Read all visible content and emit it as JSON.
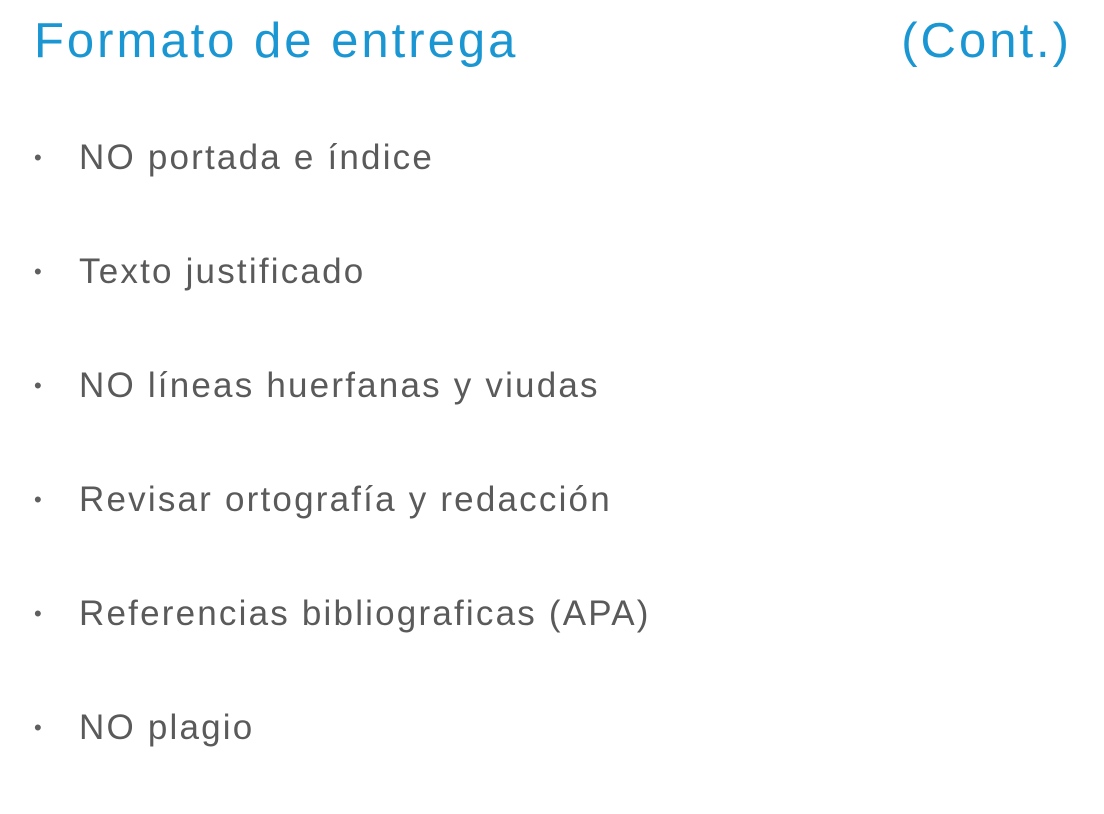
{
  "slide": {
    "title": "Formato de entrega",
    "title_suffix": "(Cont.)",
    "bullet_glyph": "•",
    "items": [
      {
        "text": "NO portada e índice"
      },
      {
        "text": "Texto justificado"
      },
      {
        "text": "NO líneas huerfanas y viudas"
      },
      {
        "text": "Revisar ortografía y redacción"
      },
      {
        "text": "Referencias bibliograficas (APA)"
      },
      {
        "text": "NO plagio"
      }
    ],
    "colors": {
      "title": "#1a96d3",
      "body_text": "#5a5a5a",
      "background": "#ffffff"
    }
  }
}
